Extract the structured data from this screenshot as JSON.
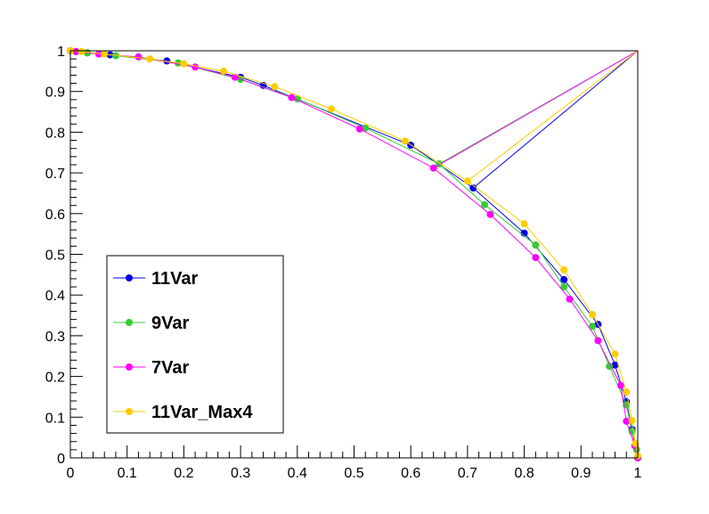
{
  "chart_data": {
    "type": "line",
    "xlim": [
      0,
      1
    ],
    "ylim": [
      0,
      1
    ],
    "x_ticks": [
      "0",
      "0.1",
      "0.2",
      "0.3",
      "0.4",
      "0.5",
      "0.6",
      "0.7",
      "0.8",
      "0.9",
      "1"
    ],
    "y_ticks": [
      "0",
      "0.1",
      "0.2",
      "0.3",
      "0.4",
      "0.5",
      "0.6",
      "0.7",
      "0.8",
      "0.9",
      "1"
    ],
    "grid": false,
    "legend_position": "bottom-left",
    "series": [
      {
        "name": "11Var",
        "color": "#0000ee",
        "points": [
          [
            0.0,
            1.0
          ],
          [
            0.01,
            0.998
          ],
          [
            0.03,
            0.995
          ],
          [
            0.07,
            0.99
          ],
          [
            0.17,
            0.975
          ],
          [
            0.3,
            0.935
          ],
          [
            0.34,
            0.915
          ],
          [
            0.6,
            0.768
          ],
          [
            0.71,
            0.663
          ],
          [
            0.8,
            0.552
          ],
          [
            0.87,
            0.438
          ],
          [
            0.93,
            0.328
          ],
          [
            0.96,
            0.228
          ],
          [
            0.98,
            0.138
          ],
          [
            0.99,
            0.07
          ],
          [
            0.995,
            0.03
          ],
          [
            1.0,
            0.0
          ]
        ],
        "outlier": [
          1.0,
          1.0
        ]
      },
      {
        "name": "9Var",
        "color": "#33cc33",
        "points": [
          [
            0.0,
            1.0
          ],
          [
            0.01,
            0.998
          ],
          [
            0.03,
            0.995
          ],
          [
            0.08,
            0.988
          ],
          [
            0.19,
            0.97
          ],
          [
            0.3,
            0.93
          ],
          [
            0.4,
            0.882
          ],
          [
            0.52,
            0.81
          ],
          [
            0.65,
            0.722
          ],
          [
            0.73,
            0.622
          ],
          [
            0.82,
            0.523
          ],
          [
            0.87,
            0.42
          ],
          [
            0.92,
            0.323
          ],
          [
            0.95,
            0.225
          ],
          [
            0.98,
            0.13
          ],
          [
            0.99,
            0.065
          ],
          [
            0.998,
            0.02
          ],
          [
            1.0,
            0.0
          ]
        ],
        "outlier": [
          1.0,
          1.0
        ]
      },
      {
        "name": "7Var",
        "color": "#ff00ff",
        "points": [
          [
            0.0,
            1.0
          ],
          [
            0.01,
            0.998
          ],
          [
            0.05,
            0.992
          ],
          [
            0.12,
            0.985
          ],
          [
            0.22,
            0.96
          ],
          [
            0.29,
            0.935
          ],
          [
            0.39,
            0.885
          ],
          [
            0.51,
            0.808
          ],
          [
            0.64,
            0.712
          ],
          [
            0.74,
            0.598
          ],
          [
            0.82,
            0.492
          ],
          [
            0.88,
            0.39
          ],
          [
            0.93,
            0.288
          ],
          [
            0.97,
            0.178
          ],
          [
            0.98,
            0.09
          ],
          [
            0.995,
            0.03
          ],
          [
            1.0,
            0.0
          ]
        ],
        "outlier": [
          1.0,
          1.0
        ]
      },
      {
        "name": "11Var_Max4",
        "color": "#ffcc00",
        "points": [
          [
            0.0,
            1.0
          ],
          [
            0.02,
            0.998
          ],
          [
            0.06,
            0.992
          ],
          [
            0.14,
            0.98
          ],
          [
            0.2,
            0.968
          ],
          [
            0.27,
            0.95
          ],
          [
            0.36,
            0.912
          ],
          [
            0.46,
            0.857
          ],
          [
            0.59,
            0.778
          ],
          [
            0.7,
            0.68
          ],
          [
            0.8,
            0.575
          ],
          [
            0.87,
            0.462
          ],
          [
            0.92,
            0.352
          ],
          [
            0.96,
            0.255
          ],
          [
            0.98,
            0.162
          ],
          [
            0.99,
            0.092
          ],
          [
            0.996,
            0.035
          ],
          [
            1.0,
            0.005
          ]
        ],
        "outlier": [
          1.0,
          1.0
        ]
      }
    ]
  }
}
